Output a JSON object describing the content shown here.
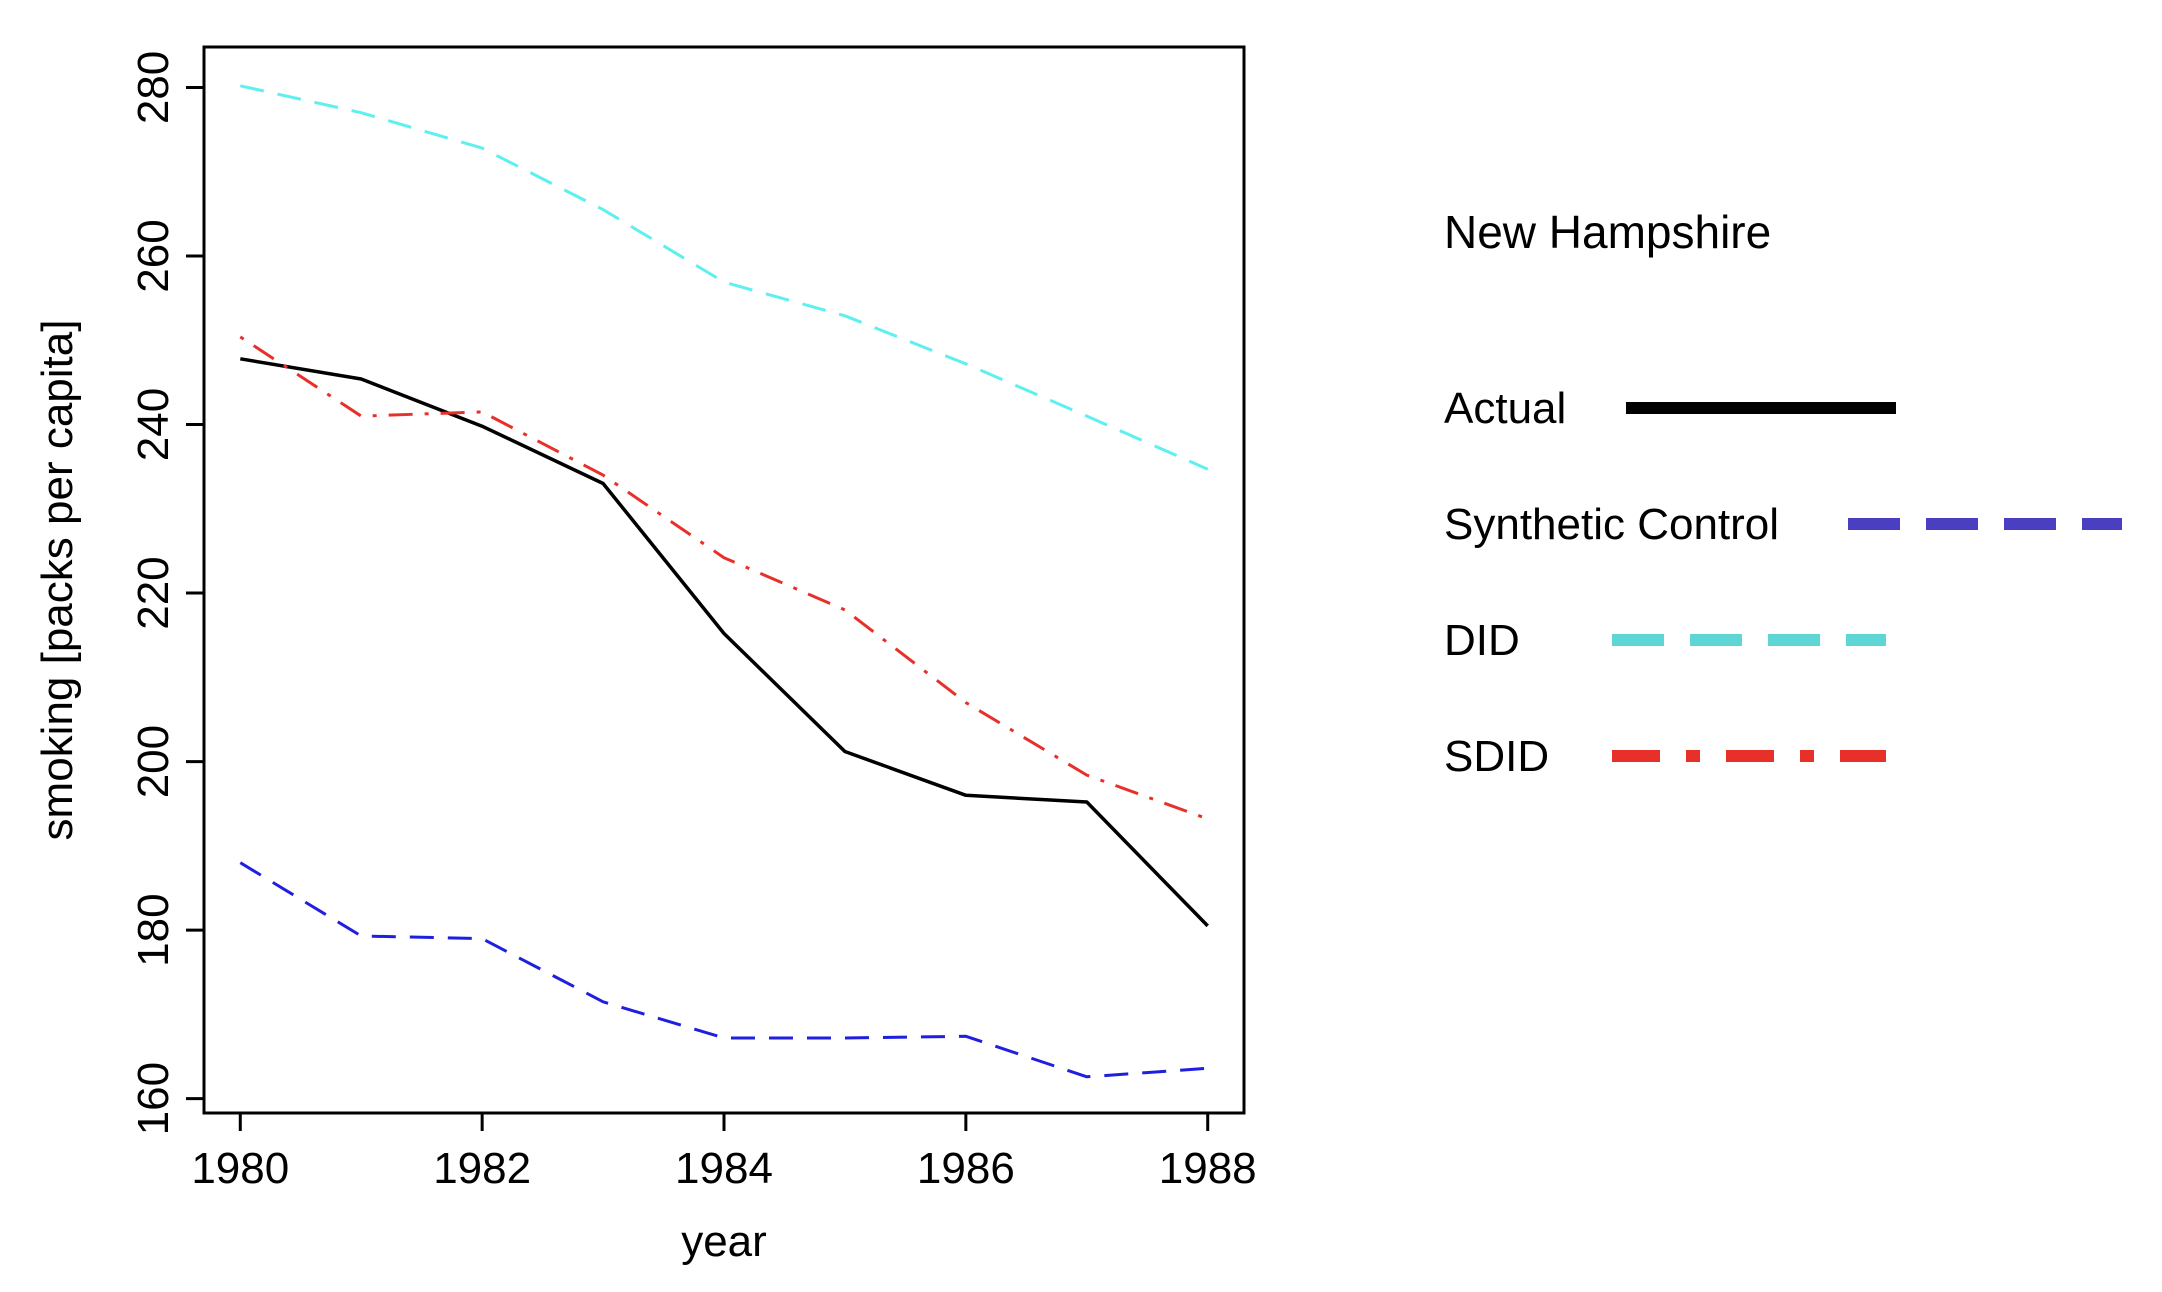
{
  "chart_data": {
    "type": "line",
    "title": "",
    "xlabel": "year",
    "ylabel": "smoking [packs per capita]",
    "xlim": [
      1979.7,
      1988.3
    ],
    "ylim": [
      158.3,
      284.8
    ],
    "xticks": [
      1980,
      1982,
      1984,
      1986,
      1988
    ],
    "yticks": [
      160,
      180,
      200,
      220,
      240,
      260,
      280
    ],
    "x": [
      1980,
      1981,
      1982,
      1983,
      1984,
      1985,
      1986,
      1987,
      1988
    ],
    "grid": false,
    "legend_position": "right",
    "legend_title": "New Hampshire",
    "series": [
      {
        "name": "Actual",
        "color": "#000000",
        "style": "solid",
        "values": [
          247.8,
          245.4,
          239.8,
          233.0,
          215.2,
          201.2,
          196.0,
          195.2,
          180.5
        ]
      },
      {
        "name": "Synthetic Control",
        "color": "#1f1fe0",
        "style": "dashed",
        "values": [
          188.0,
          179.3,
          179.0,
          171.5,
          167.2,
          167.2,
          167.4,
          162.6,
          163.6
        ]
      },
      {
        "name": "DID",
        "color": "#5ef0f0",
        "style": "dashed",
        "values": [
          280.2,
          277.0,
          272.8,
          265.5,
          256.9,
          252.9,
          247.2,
          241.0,
          234.7
        ]
      },
      {
        "name": "SDID",
        "color": "#e8302a",
        "style": "dotdash",
        "values": [
          250.4,
          241.0,
          241.5,
          234.0,
          224.2,
          218.0,
          207.0,
          198.4,
          193.2
        ]
      }
    ]
  },
  "legend_colors": {
    "Actual": "#000000",
    "Synthetic Control": "#4a3fc0",
    "DID": "#5fd6d6",
    "SDID": "#e8302a"
  }
}
